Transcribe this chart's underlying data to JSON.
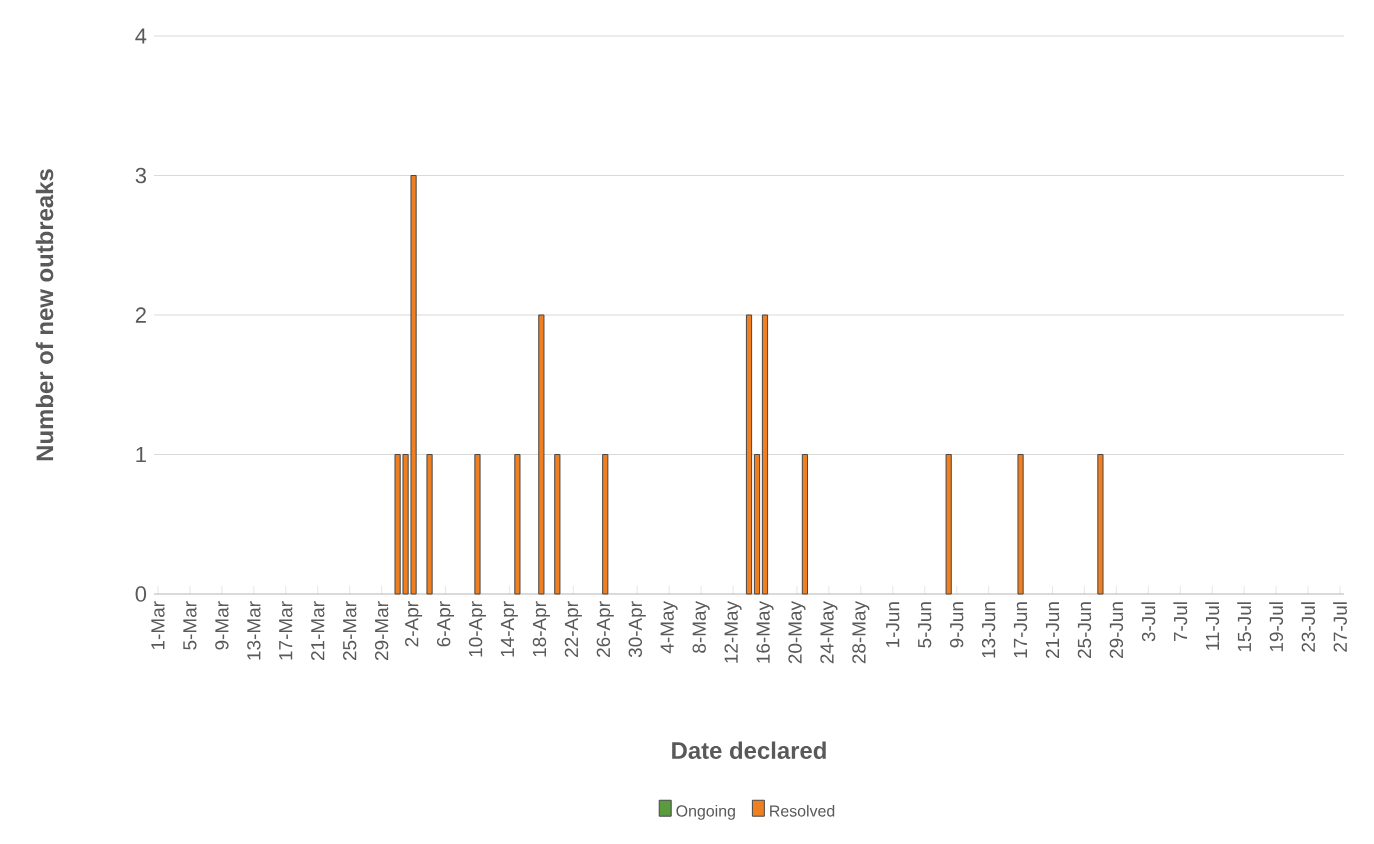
{
  "chart_data": {
    "type": "bar",
    "stacked": true,
    "xlabel": "Date declared",
    "ylabel": "Number of  new outbreaks",
    "categories": [
      "1-Mar",
      null,
      null,
      null,
      "5-Mar",
      null,
      null,
      null,
      "9-Mar",
      null,
      null,
      null,
      "13-Mar",
      null,
      null,
      null,
      "17-Mar",
      null,
      null,
      null,
      "21-Mar",
      null,
      null,
      null,
      "25-Mar",
      null,
      null,
      null,
      "29-Mar",
      null,
      null,
      null,
      "2-Apr",
      null,
      null,
      null,
      "6-Apr",
      null,
      null,
      null,
      "10-Apr",
      null,
      null,
      null,
      "14-Apr",
      null,
      null,
      null,
      "18-Apr",
      null,
      null,
      null,
      "22-Apr",
      null,
      null,
      null,
      "26-Apr",
      null,
      null,
      null,
      "30-Apr",
      null,
      null,
      null,
      "4-May",
      null,
      null,
      null,
      "8-May",
      null,
      null,
      null,
      "12-May",
      null,
      null,
      null,
      "16-May",
      null,
      null,
      null,
      "20-May",
      null,
      null,
      null,
      "24-May",
      null,
      null,
      null,
      "28-May",
      null,
      null,
      null,
      "1-Jun",
      null,
      null,
      null,
      "5-Jun",
      null,
      null,
      null,
      "9-Jun",
      null,
      null,
      null,
      "13-Jun",
      null,
      null,
      null,
      "17-Jun",
      null,
      null,
      null,
      "21-Jun",
      null,
      null,
      null,
      "25-Jun",
      null,
      null,
      null,
      "29-Jun",
      null,
      null,
      null,
      "3-Jul",
      null,
      null,
      null,
      "7-Jul",
      null,
      null,
      null,
      "11-Jul",
      null,
      null,
      null,
      "15-Jul",
      null,
      null,
      null,
      "19-Jul",
      null,
      null,
      null,
      "23-Jul",
      null,
      null,
      null,
      "27-Jul"
    ],
    "series": [
      {
        "name": "Ongoing",
        "color": "#5b9b3f",
        "values": [
          0,
          0,
          0,
          0,
          0,
          0,
          0,
          0,
          0,
          0,
          0,
          0,
          0,
          0,
          0,
          0,
          0,
          0,
          0,
          0,
          0,
          0,
          0,
          0,
          0,
          0,
          0,
          0,
          0,
          0,
          0,
          0,
          0,
          0,
          0,
          0,
          0,
          0,
          0,
          0,
          0,
          0,
          0,
          0,
          0,
          0,
          0,
          0,
          0,
          0,
          0,
          0,
          0,
          0,
          0,
          0,
          0,
          0,
          0,
          0,
          0,
          0,
          0,
          0,
          0,
          0,
          0,
          0,
          0,
          0,
          0,
          0,
          0,
          0,
          0,
          0,
          0,
          0,
          0,
          0,
          0,
          0,
          0,
          0,
          0,
          0,
          0,
          0,
          0,
          0,
          0,
          0,
          0,
          0,
          0,
          0,
          0,
          0,
          0,
          0,
          0,
          0,
          0,
          0,
          0,
          0,
          0,
          0,
          0,
          0,
          0,
          0,
          0,
          0,
          0,
          0,
          0,
          0,
          0,
          0,
          0,
          0,
          0,
          0,
          0,
          0,
          0,
          0,
          0,
          0,
          0,
          0,
          0,
          0,
          0,
          0,
          0,
          0,
          0,
          0,
          0,
          0,
          0,
          0,
          0,
          0,
          0,
          0,
          0
        ]
      },
      {
        "name": "Resolved",
        "color": "#f07f22",
        "values": [
          0,
          0,
          0,
          0,
          0,
          0,
          0,
          0,
          0,
          0,
          0,
          0,
          0,
          0,
          0,
          0,
          0,
          0,
          0,
          0,
          0,
          0,
          0,
          0,
          0,
          0,
          0,
          0,
          0,
          0,
          1,
          1,
          3,
          0,
          1,
          0,
          0,
          0,
          0,
          0,
          1,
          0,
          0,
          0,
          0,
          1,
          0,
          0,
          2,
          0,
          1,
          0,
          0,
          0,
          0,
          0,
          1,
          0,
          0,
          0,
          0,
          0,
          0,
          0,
          0,
          0,
          0,
          0,
          0,
          0,
          0,
          0,
          0,
          0,
          2,
          1,
          2,
          0,
          0,
          0,
          0,
          1,
          0,
          0,
          0,
          0,
          0,
          0,
          0,
          0,
          0,
          0,
          0,
          0,
          0,
          0,
          0,
          0,
          0,
          1,
          0,
          0,
          0,
          0,
          0,
          0,
          0,
          0,
          1,
          0,
          0,
          0,
          0,
          0,
          0,
          0,
          0,
          0,
          1,
          0,
          0,
          0,
          0,
          0,
          0,
          0,
          0,
          0,
          0,
          0,
          0,
          0,
          0,
          0,
          0,
          0,
          0,
          0,
          0,
          0,
          0,
          0,
          0,
          0,
          0,
          0,
          0,
          0,
          0
        ]
      }
    ],
    "ylim": [
      0,
      4
    ],
    "yticks": [
      0,
      1,
      2,
      3,
      4
    ],
    "grid": "y",
    "legend": "bottom"
  }
}
